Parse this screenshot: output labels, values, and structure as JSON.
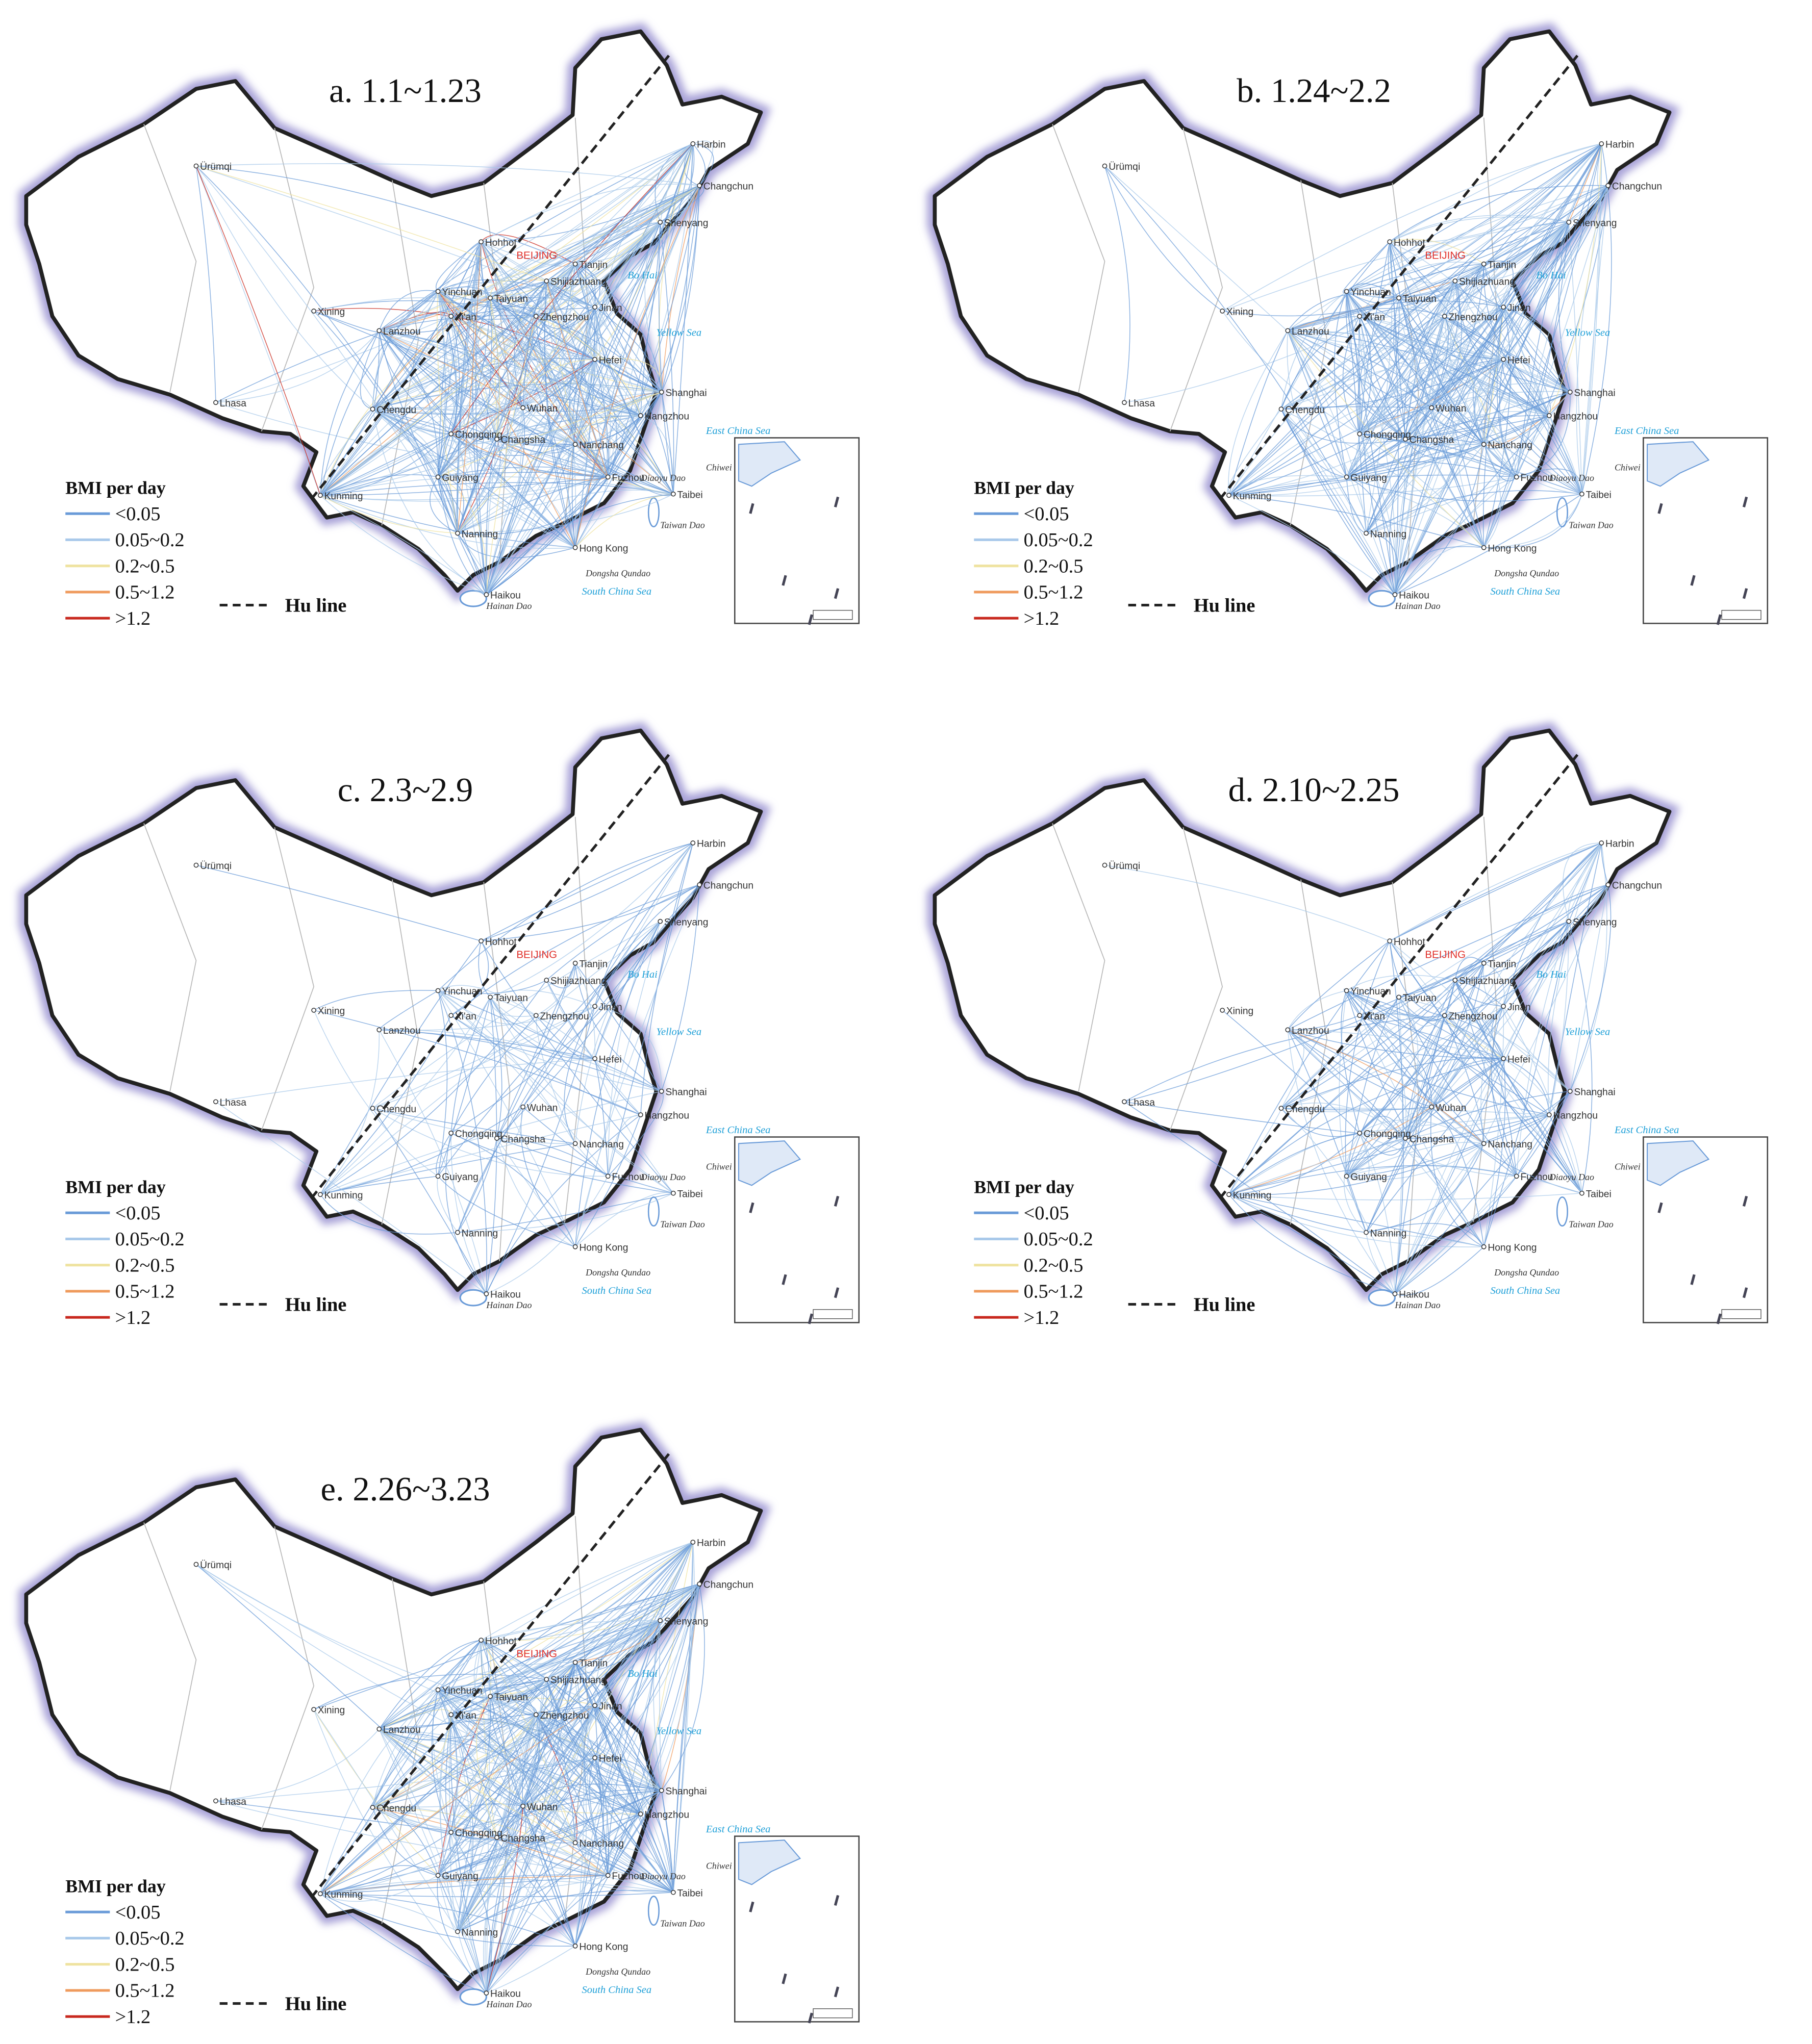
{
  "panels": [
    {
      "title": "a. 1.1~1.23"
    },
    {
      "title": "b. 1.24~2.2"
    },
    {
      "title": "c. 2.3~2.9"
    },
    {
      "title": "d. 2.10~2.25"
    },
    {
      "title": "e. 2.26~3.23"
    }
  ],
  "legend": {
    "title": "BMI per day",
    "items": [
      {
        "label": "<0.05",
        "color": "#6a9bd8"
      },
      {
        "label": "0.05~0.2",
        "color": "#a9c9ea"
      },
      {
        "label": "0.2~0.5",
        "color": "#efe3a0"
      },
      {
        "label": "0.5~1.2",
        "color": "#ef9a5c"
      },
      {
        "label": ">1.2",
        "color": "#c8281e"
      }
    ],
    "hu_line": "Hu line"
  },
  "base_map": {
    "cities": [
      "Ürümqi",
      "Lhasa",
      "Xining",
      "Lanzhou",
      "Yinchuan",
      "Hohhot",
      "Tianjin",
      "Shijiazhuang",
      "Taiyuan",
      "Jinan",
      "Xi'an",
      "Zhengzhou",
      "Hefei",
      "Shanghai",
      "Hangzhou",
      "Wuhan",
      "Chengdu",
      "Chongqing",
      "Changsha",
      "Nanchang",
      "Fuzhou",
      "Guiyang",
      "Kunming",
      "Nanning",
      "Hong Kong",
      "Haikou",
      "Harbin",
      "Changchun",
      "Shenyang",
      "Taibei"
    ],
    "capital": "BEIJING",
    "seas": [
      "Yellow Sea",
      "East China Sea",
      "South China Sea",
      "Bo Hai"
    ],
    "islands": [
      "Dongsha Qundao",
      "Hainan Dao",
      "Taiwan Dao",
      "Diaoyu Dao",
      "Chiwei Yu"
    ]
  }
}
